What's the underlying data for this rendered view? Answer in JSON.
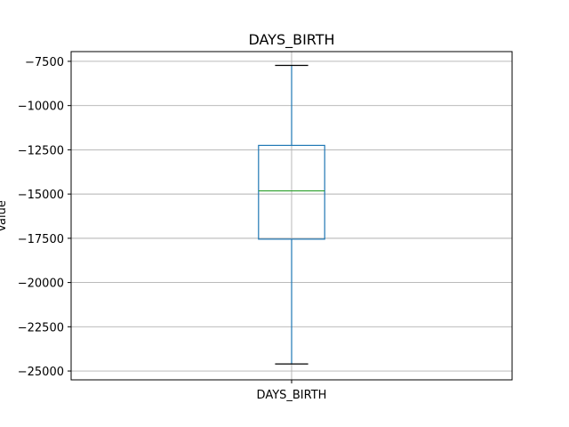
{
  "chart_data": {
    "type": "box",
    "title": "DAYS_BIRTH",
    "xlabel": "",
    "ylabel": "Value",
    "categories": [
      "DAYS_BIRTH"
    ],
    "ylim": [
      -25500,
      -6950
    ],
    "yticks": [
      -25000,
      -22500,
      -20000,
      -17500,
      -15000,
      -12500,
      -10000,
      -7500
    ],
    "ytick_labels": [
      "−25000",
      "−22500",
      "−20000",
      "−17500",
      "−15000",
      "−12500",
      "−10000",
      "−7500"
    ],
    "grid": true,
    "boxes": [
      {
        "name": "DAYS_BIRTH",
        "whisker_low": -24600,
        "q1": -17550,
        "median": -14820,
        "q3": -12250,
        "whisker_high": -7730
      }
    ],
    "colors": {
      "box": "#1f77b4",
      "median": "#2ca02c",
      "whisker": "#1f77b4",
      "cap": "#000000",
      "grid": "#b0b0b0"
    }
  }
}
